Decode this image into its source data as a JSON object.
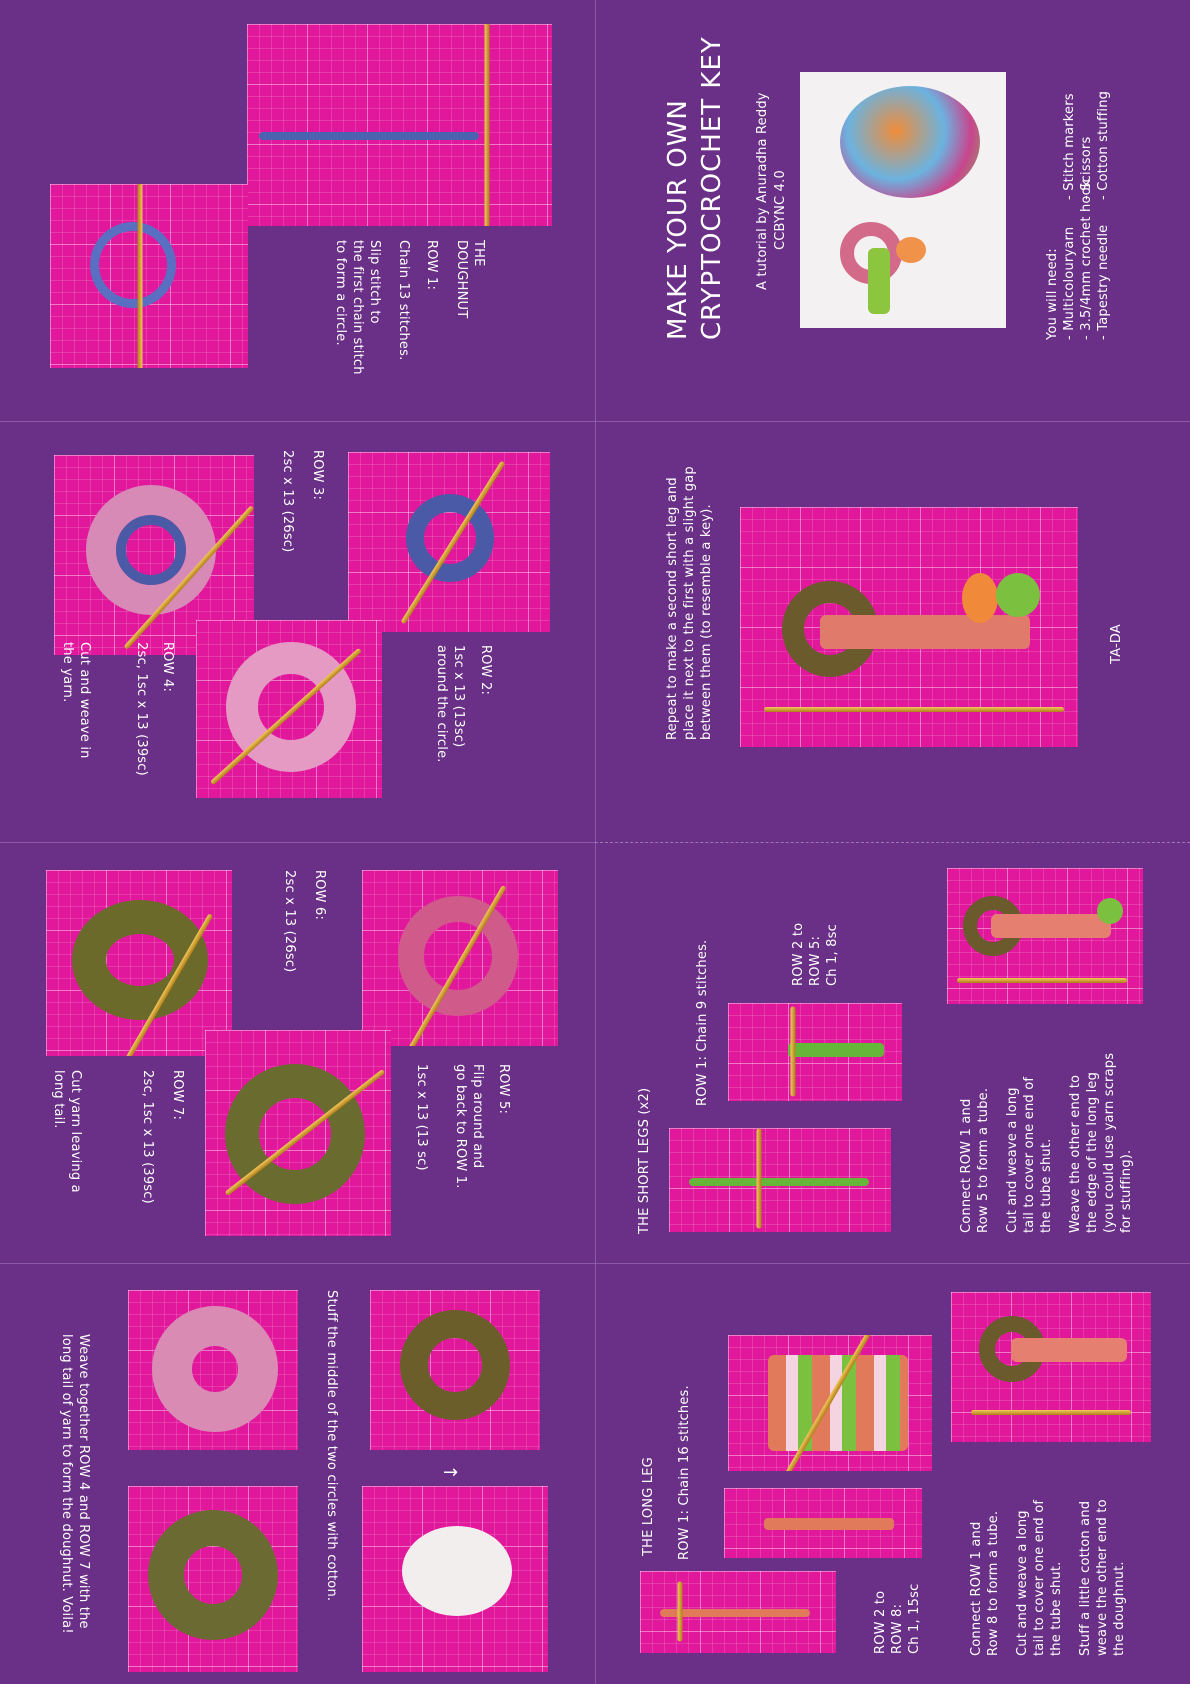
{
  "cover": {
    "title_line1": "MAKE YOUR OWN",
    "title_line2": "CRYPTOCROCHET KEY",
    "byline": "A tutorial by Anuradha Reddy",
    "license": "CCBYNC 4.0",
    "materials_heading": "You will need:",
    "materials_col1": [
      "- Multicolouryarn",
      "- 3.5/4mm crochet hook",
      "- Tapestry needle"
    ],
    "materials_col2": [
      "- Stitch markers",
      "- Scissors",
      "- Cotton stuffing"
    ]
  },
  "doughnut": {
    "heading_line1": "THE",
    "heading_line2": "DOUGHNUT",
    "row1_label": "ROW 1:",
    "row1_text": "Chain 13 stitches.",
    "row1_note": [
      "Slip stitch to",
      "the first chain stitch",
      "to form a circle."
    ]
  },
  "rows_2_4": {
    "row2_label": "ROW 2:",
    "row2_text": [
      "1sc x 13 (13sc)",
      "around the circle."
    ],
    "row3_label": "ROW 3:",
    "row3_text": "2sc x 13 (26sc)",
    "row4_label": "ROW 4:",
    "row4_text": "2sc, 1sc x 13 (39sc)",
    "row4_note": [
      "Cut and weave in",
      "the yarn."
    ]
  },
  "rows_5_7": {
    "row5_label": "ROW 5:",
    "row5_text": [
      "Flip around and",
      "go back to ROW 1."
    ],
    "row5_count": "1sc x 13 (13 sc)",
    "row6_label": "ROW 6:",
    "row6_text": "2sc x 13 (26sc)",
    "row7_label": "ROW 7:",
    "row7_text": "2sc, 1sc x 13 (39sc)",
    "row7_note": [
      "Cut yarn leaving a",
      "long tail."
    ]
  },
  "finish_doughnut": {
    "stuff_text": "Stuff the middle of the two circles with cotton.",
    "arrow": "→",
    "weave_line1": "Weave together ROW 4 and ROW 7 with the",
    "weave_line2": "long tail of yarn to form the doughnut. Voila!"
  },
  "tada": {
    "text_line1": "Repeat to make a second short leg and",
    "text_line2": "place it next to the first with a slight gap",
    "text_line3": "between them (to resemble a key).",
    "label": "TA-DA"
  },
  "short_legs": {
    "heading": "THE SHORT LEGS (x2)",
    "row1_text": "ROW 1: Chain 9 stitches.",
    "row2_5_text": [
      "ROW 2 to",
      "ROW 5:",
      "Ch 1, 8sc"
    ],
    "notes": [
      "Connect ROW 1 and",
      "Row 5 to form a tube.",
      "",
      "Cut and weave a long",
      "tail to cover one end of",
      "the tube shut.",
      "",
      "Weave the other end to",
      "the edge of the long leg",
      "(you could use yarn scraps",
      "for stuffing)."
    ]
  },
  "long_leg": {
    "heading": "THE LONG LEG",
    "row1_text": "ROW 1: Chain 16 stitches.",
    "row2_8_text": [
      "ROW 2 to",
      "ROW 8:",
      "Ch 1, 15sc"
    ],
    "notes": [
      "Connect ROW 1 and",
      "Row 8 to form a tube.",
      "",
      "Cut and weave a long",
      "tail to cover one end of",
      "the tube shut.",
      "",
      "Stuff a little cotton and",
      "weave the other end to",
      "the doughnut."
    ]
  }
}
